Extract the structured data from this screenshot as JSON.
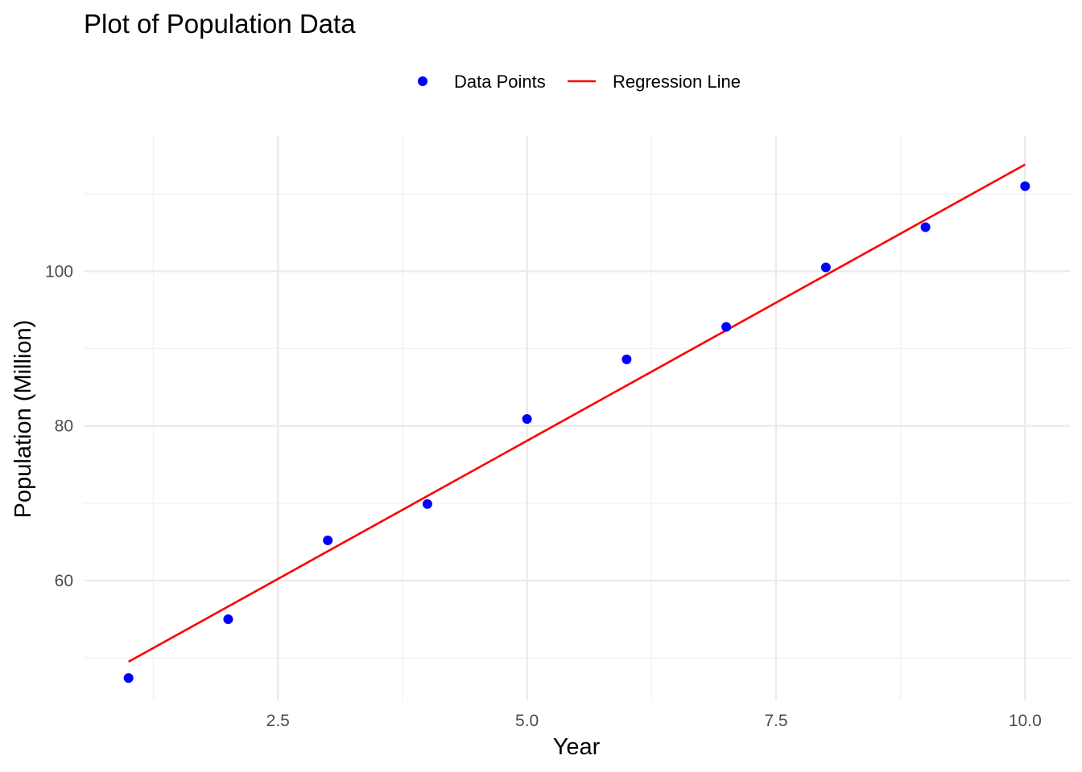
{
  "chart_data": {
    "type": "scatter",
    "title": "Plot of Population Data",
    "xlabel": "Year",
    "ylabel": "Population (Million)",
    "xlim": [
      0.55,
      10.45
    ],
    "ylim": [
      44.5,
      117.5
    ],
    "x_ticks": [
      2.5,
      5.0,
      7.5,
      10.0
    ],
    "x_tick_labels": [
      "2.5",
      "5.0",
      "7.5",
      "10.0"
    ],
    "y_ticks": [
      60,
      80,
      100
    ],
    "y_tick_labels": [
      "60",
      "80",
      "100"
    ],
    "x_minor_ticks": [
      1.25,
      3.75,
      6.25,
      8.75
    ],
    "y_minor_ticks": [
      50,
      70,
      90,
      110
    ],
    "grid": true,
    "legend_position": "top",
    "series": [
      {
        "name": "Data Points",
        "kind": "points",
        "color": "#0000ff",
        "x": [
          1,
          2,
          3,
          4,
          5,
          6,
          7,
          8,
          9,
          10
        ],
        "y": [
          47.4,
          55.0,
          65.2,
          69.9,
          80.9,
          88.6,
          92.8,
          100.5,
          105.7,
          111.0
        ]
      },
      {
        "name": "Regression Line",
        "kind": "line",
        "color": "#ff0000",
        "x": [
          1,
          10
        ],
        "y": [
          49.5,
          113.8
        ]
      }
    ]
  }
}
